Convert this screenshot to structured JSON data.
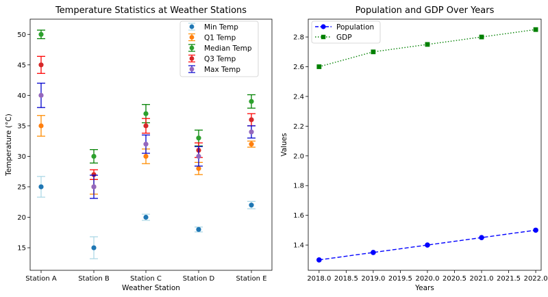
{
  "chart_data": [
    {
      "type": "scatter",
      "title": "Temperature Statistics at Weather Stations",
      "xlabel": "Weather Station",
      "ylabel": "Temperature (°C)",
      "categories": [
        "Station A",
        "Station B",
        "Station C",
        "Station D",
        "Station E"
      ],
      "ylim": [
        11.3,
        52.5
      ],
      "yticks": [
        "15",
        "20",
        "25",
        "30",
        "35",
        "40",
        "45",
        "50"
      ],
      "legend_position": "top-right",
      "series": [
        {
          "name": "Min Temp",
          "values": [
            25,
            15,
            20,
            18,
            22
          ],
          "errors": [
            1.7,
            1.8,
            0.5,
            0.4,
            0.6
          ],
          "color": "#1f77b4",
          "error_color": "#add8e6"
        },
        {
          "name": "Q1 Temp",
          "values": [
            35,
            25,
            30,
            28,
            32
          ],
          "errors": [
            1.7,
            1.2,
            1.2,
            1.0,
            0.5
          ],
          "color": "#ff7f0e",
          "error_color": "#ff8c00"
        },
        {
          "name": "Median Temp",
          "values": [
            50,
            30,
            37,
            33,
            39
          ],
          "errors": [
            0.7,
            1.1,
            1.5,
            1.3,
            1.1
          ],
          "color": "#2ca02c",
          "error_color": "#008000"
        },
        {
          "name": "Q3 Temp",
          "values": [
            45,
            27,
            35,
            31,
            36
          ],
          "errors": [
            1.4,
            0.8,
            1.2,
            1.2,
            1.0
          ],
          "color": "#d62728",
          "error_color": "#ff0000"
        },
        {
          "name": "Max Temp",
          "values": [
            40,
            25,
            32,
            30,
            34
          ],
          "errors": [
            2.0,
            1.9,
            1.5,
            1.6,
            1.0
          ],
          "color": "#9467bd",
          "error_color": "#0000cd"
        }
      ]
    },
    {
      "type": "line",
      "title": "Population and GDP Over Years",
      "xlabel": "Years",
      "ylabel": "Values",
      "x": [
        2018,
        2019,
        2020,
        2021,
        2022
      ],
      "xlim": [
        2017.8,
        2022.1
      ],
      "xticks": [
        2018,
        2018.5,
        2019,
        2019.5,
        2020,
        2020.5,
        2021,
        2021.5,
        2022
      ],
      "xticklabels": [
        "2018.0",
        "2018.5",
        "2019.0",
        "2019.5",
        "2020.0",
        "2020.5",
        "2021.0",
        "2021.5",
        "2022.0"
      ],
      "ylim": [
        1.23,
        2.92
      ],
      "yticks": [
        1.4,
        1.6,
        1.8,
        2.0,
        2.2,
        2.4,
        2.6,
        2.8
      ],
      "yticklabels": [
        "1.4",
        "1.6",
        "1.8",
        "2.0",
        "2.2",
        "2.4",
        "2.6",
        "2.8"
      ],
      "legend_position": "top-left",
      "series": [
        {
          "name": "Population",
          "values": [
            1.3,
            1.35,
            1.4,
            1.45,
            1.5
          ],
          "color": "#0000ff",
          "marker": "circle",
          "linestyle": "dashed"
        },
        {
          "name": "GDP",
          "values": [
            2.6,
            2.7,
            2.75,
            2.8,
            2.85
          ],
          "color": "#008000",
          "marker": "square",
          "linestyle": "dotted"
        }
      ]
    }
  ]
}
